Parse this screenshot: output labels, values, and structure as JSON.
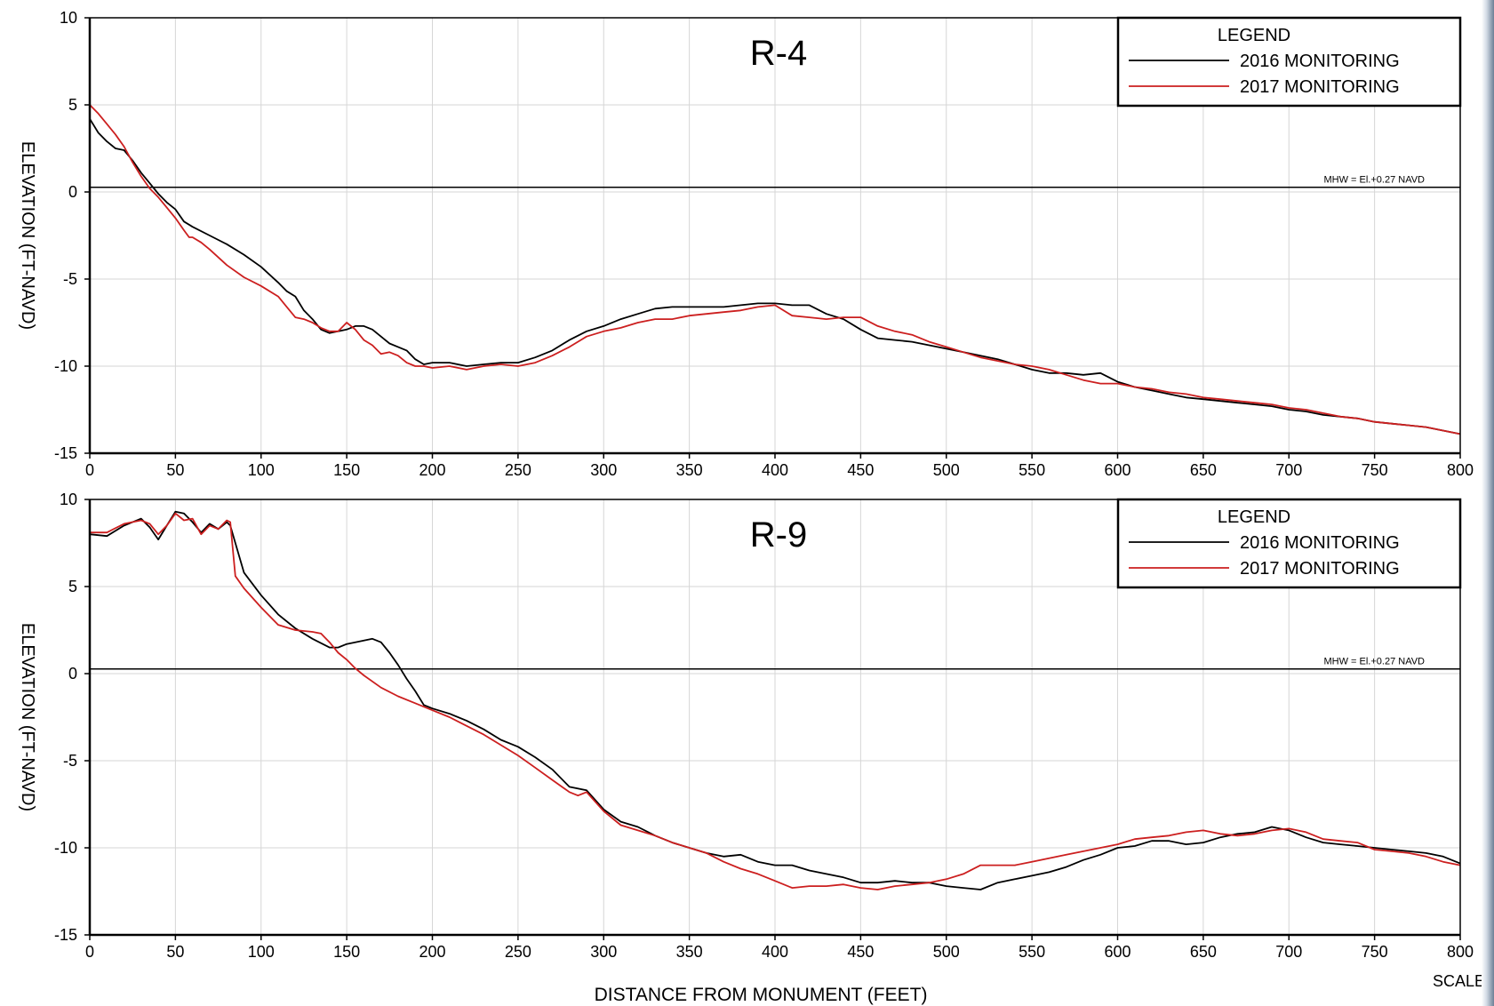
{
  "charts_meta": {
    "xlabel": "DISTANCE  FROM  MONUMENT  (FEET)",
    "scale_text": "SCALE"
  },
  "chart_data": [
    {
      "type": "line",
      "title": "R-4",
      "xlabel": "",
      "ylabel": "ELEVATION (FT-NAVD)",
      "xlim": [
        0,
        800
      ],
      "ylim": [
        -15,
        10
      ],
      "xticks": [
        0,
        50,
        100,
        150,
        200,
        250,
        300,
        350,
        400,
        450,
        500,
        550,
        600,
        650,
        700,
        750,
        800
      ],
      "yticks": [
        10,
        5,
        0,
        -5,
        -10,
        -15
      ],
      "grid": true,
      "legend": {
        "title": "LEGEND",
        "placement": "top-right"
      },
      "reference_line": {
        "y": 0.27,
        "label": "MHW = El.+0.27 NAVD"
      },
      "series": [
        {
          "name": "2016 MONITORING",
          "color": "#000000",
          "x": [
            0,
            5,
            10,
            15,
            20,
            25,
            30,
            35,
            40,
            45,
            50,
            55,
            60,
            70,
            80,
            90,
            100,
            110,
            115,
            120,
            125,
            130,
            135,
            140,
            145,
            150,
            155,
            160,
            165,
            170,
            175,
            180,
            185,
            190,
            195,
            200,
            210,
            220,
            230,
            240,
            250,
            260,
            270,
            280,
            290,
            300,
            310,
            320,
            330,
            340,
            350,
            360,
            370,
            380,
            390,
            400,
            410,
            420,
            430,
            440,
            450,
            460,
            470,
            480,
            490,
            500,
            510,
            520,
            530,
            540,
            550,
            560,
            570,
            580,
            590,
            600,
            610,
            620,
            630,
            640,
            650,
            660,
            670,
            680,
            690,
            700,
            710,
            720,
            730,
            740,
            750,
            760,
            770,
            780,
            790,
            800
          ],
          "y": [
            4.2,
            3.4,
            2.9,
            2.5,
            2.4,
            1.8,
            1.1,
            0.5,
            -0.1,
            -0.6,
            -1.0,
            -1.7,
            -2.0,
            -2.5,
            -3.0,
            -3.6,
            -4.3,
            -5.2,
            -5.7,
            -6.0,
            -6.8,
            -7.3,
            -7.9,
            -8.1,
            -8.0,
            -7.9,
            -7.7,
            -7.7,
            -7.9,
            -8.3,
            -8.7,
            -8.9,
            -9.1,
            -9.6,
            -9.9,
            -9.8,
            -9.8,
            -10.0,
            -9.9,
            -9.8,
            -9.8,
            -9.5,
            -9.1,
            -8.5,
            -8.0,
            -7.7,
            -7.3,
            -7.0,
            -6.7,
            -6.6,
            -6.6,
            -6.6,
            -6.6,
            -6.5,
            -6.4,
            -6.4,
            -6.5,
            -6.5,
            -7.0,
            -7.3,
            -7.9,
            -8.4,
            -8.5,
            -8.6,
            -8.8,
            -9.0,
            -9.2,
            -9.4,
            -9.6,
            -9.9,
            -10.2,
            -10.4,
            -10.4,
            -10.5,
            -10.4,
            -10.9,
            -11.2,
            -11.4,
            -11.6,
            -11.8,
            -11.9,
            -12.0,
            -12.1,
            -12.2,
            -12.3,
            -12.5,
            -12.6,
            -12.8,
            -12.9,
            -13.0,
            -13.2,
            -13.3,
            -13.4,
            -13.5,
            -13.7,
            -13.9
          ]
        },
        {
          "name": "2017 MONITORING",
          "color": "#cc1f1f",
          "x": [
            0,
            5,
            10,
            15,
            20,
            25,
            30,
            35,
            40,
            45,
            50,
            55,
            58,
            60,
            65,
            70,
            80,
            90,
            100,
            110,
            115,
            120,
            125,
            130,
            135,
            140,
            145,
            150,
            155,
            160,
            165,
            170,
            175,
            180,
            185,
            190,
            195,
            200,
            210,
            220,
            230,
            240,
            250,
            260,
            270,
            280,
            290,
            300,
            310,
            320,
            330,
            340,
            350,
            360,
            370,
            380,
            390,
            400,
            410,
            420,
            430,
            440,
            450,
            460,
            470,
            480,
            490,
            500,
            510,
            520,
            530,
            540,
            550,
            560,
            570,
            580,
            590,
            600,
            610,
            620,
            630,
            640,
            650,
            660,
            670,
            680,
            690,
            700,
            710,
            720,
            730,
            740,
            750,
            760,
            770,
            780,
            790,
            800
          ],
          "y": [
            5.0,
            4.5,
            3.9,
            3.3,
            2.6,
            1.7,
            0.9,
            0.2,
            -0.3,
            -0.9,
            -1.5,
            -2.2,
            -2.6,
            -2.6,
            -2.9,
            -3.3,
            -4.2,
            -4.9,
            -5.4,
            -6.0,
            -6.6,
            -7.2,
            -7.3,
            -7.5,
            -7.8,
            -8.0,
            -8.0,
            -7.5,
            -7.9,
            -8.5,
            -8.8,
            -9.3,
            -9.2,
            -9.4,
            -9.8,
            -10.0,
            -10.0,
            -10.1,
            -10.0,
            -10.2,
            -10.0,
            -9.9,
            -10.0,
            -9.8,
            -9.4,
            -8.9,
            -8.3,
            -8.0,
            -7.8,
            -7.5,
            -7.3,
            -7.3,
            -7.1,
            -7.0,
            -6.9,
            -6.8,
            -6.6,
            -6.5,
            -7.1,
            -7.2,
            -7.3,
            -7.2,
            -7.2,
            -7.7,
            -8.0,
            -8.2,
            -8.6,
            -8.9,
            -9.2,
            -9.5,
            -9.7,
            -9.9,
            -10.0,
            -10.2,
            -10.5,
            -10.8,
            -11.0,
            -11.0,
            -11.2,
            -11.3,
            -11.5,
            -11.6,
            -11.8,
            -11.9,
            -12.0,
            -12.1,
            -12.2,
            -12.4,
            -12.5,
            -12.7,
            -12.9,
            -13.0,
            -13.2,
            -13.3,
            -13.4,
            -13.5,
            -13.7,
            -13.9
          ]
        }
      ]
    },
    {
      "type": "line",
      "title": "R-9",
      "xlabel": "DISTANCE  FROM  MONUMENT  (FEET)",
      "ylabel": "ELEVATION (FT-NAVD)",
      "xlim": [
        0,
        800
      ],
      "ylim": [
        -15,
        10
      ],
      "xticks": [
        0,
        50,
        100,
        150,
        200,
        250,
        300,
        350,
        400,
        450,
        500,
        550,
        600,
        650,
        700,
        750,
        800
      ],
      "yticks": [
        10,
        5,
        0,
        -5,
        -10,
        -15
      ],
      "grid": true,
      "legend": {
        "title": "LEGEND",
        "placement": "top-right"
      },
      "reference_line": {
        "y": 0.27,
        "label": "MHW = El.+0.27 NAVD"
      },
      "series": [
        {
          "name": "2016 MONITORING",
          "color": "#000000",
          "x": [
            0,
            10,
            20,
            30,
            35,
            40,
            45,
            50,
            55,
            60,
            65,
            70,
            75,
            80,
            82,
            85,
            90,
            100,
            110,
            120,
            130,
            140,
            145,
            150,
            160,
            165,
            170,
            175,
            180,
            185,
            190,
            195,
            200,
            210,
            220,
            230,
            240,
            250,
            260,
            270,
            280,
            290,
            300,
            310,
            320,
            330,
            340,
            350,
            360,
            370,
            380,
            390,
            400,
            410,
            420,
            430,
            440,
            450,
            460,
            470,
            480,
            490,
            500,
            510,
            520,
            530,
            540,
            550,
            560,
            570,
            580,
            590,
            600,
            610,
            620,
            630,
            640,
            650,
            660,
            670,
            680,
            690,
            700,
            710,
            720,
            730,
            740,
            750,
            760,
            770,
            780,
            790,
            800
          ],
          "y": [
            8.0,
            7.9,
            8.5,
            8.9,
            8.4,
            7.7,
            8.5,
            9.3,
            9.2,
            8.7,
            8.1,
            8.6,
            8.3,
            8.7,
            8.5,
            7.5,
            5.8,
            4.5,
            3.4,
            2.6,
            2.0,
            1.5,
            1.5,
            1.7,
            1.9,
            2.0,
            1.8,
            1.2,
            0.5,
            -0.3,
            -1.0,
            -1.8,
            -2.0,
            -2.3,
            -2.7,
            -3.2,
            -3.8,
            -4.2,
            -4.8,
            -5.5,
            -6.5,
            -6.7,
            -7.8,
            -8.5,
            -8.8,
            -9.3,
            -9.7,
            -10.0,
            -10.3,
            -10.5,
            -10.4,
            -10.8,
            -11.0,
            -11.0,
            -11.3,
            -11.5,
            -11.7,
            -12.0,
            -12.0,
            -11.9,
            -12.0,
            -12.0,
            -12.2,
            -12.3,
            -12.4,
            -12.0,
            -11.8,
            -11.6,
            -11.4,
            -11.1,
            -10.7,
            -10.4,
            -10.0,
            -9.9,
            -9.6,
            -9.6,
            -9.8,
            -9.7,
            -9.4,
            -9.2,
            -9.1,
            -8.8,
            -9.0,
            -9.4,
            -9.7,
            -9.8,
            -9.9,
            -10.0,
            -10.1,
            -10.2,
            -10.3,
            -10.5,
            -10.9
          ]
        },
        {
          "name": "2017 MONITORING",
          "color": "#cc1f1f",
          "x": [
            0,
            10,
            20,
            30,
            35,
            40,
            45,
            50,
            55,
            60,
            65,
            70,
            75,
            80,
            82,
            85,
            90,
            100,
            110,
            120,
            130,
            135,
            140,
            145,
            150,
            155,
            160,
            170,
            180,
            190,
            200,
            210,
            220,
            230,
            240,
            250,
            260,
            270,
            280,
            285,
            290,
            300,
            310,
            320,
            330,
            340,
            350,
            360,
            370,
            380,
            390,
            400,
            410,
            420,
            430,
            440,
            450,
            460,
            470,
            480,
            490,
            500,
            510,
            520,
            530,
            540,
            550,
            560,
            570,
            580,
            590,
            600,
            610,
            620,
            630,
            640,
            650,
            660,
            670,
            680,
            690,
            700,
            710,
            720,
            730,
            740,
            750,
            760,
            770,
            780,
            790,
            800
          ],
          "y": [
            8.1,
            8.1,
            8.6,
            8.8,
            8.6,
            8.0,
            8.5,
            9.2,
            8.8,
            8.9,
            8.0,
            8.5,
            8.3,
            8.8,
            8.7,
            5.6,
            4.9,
            3.8,
            2.8,
            2.5,
            2.4,
            2.3,
            1.8,
            1.2,
            0.8,
            0.3,
            -0.1,
            -0.8,
            -1.3,
            -1.7,
            -2.1,
            -2.5,
            -3.0,
            -3.5,
            -4.1,
            -4.7,
            -5.4,
            -6.1,
            -6.8,
            -7.0,
            -6.8,
            -7.9,
            -8.7,
            -9.0,
            -9.3,
            -9.7,
            -10.0,
            -10.3,
            -10.8,
            -11.2,
            -11.5,
            -11.9,
            -12.3,
            -12.2,
            -12.2,
            -12.1,
            -12.3,
            -12.4,
            -12.2,
            -12.1,
            -12.0,
            -11.8,
            -11.5,
            -11.0,
            -11.0,
            -11.0,
            -10.8,
            -10.6,
            -10.4,
            -10.2,
            -10.0,
            -9.8,
            -9.5,
            -9.4,
            -9.3,
            -9.1,
            -9.0,
            -9.2,
            -9.3,
            -9.2,
            -9.0,
            -8.9,
            -9.1,
            -9.5,
            -9.6,
            -9.7,
            -10.1,
            -10.2,
            -10.3,
            -10.5,
            -10.8,
            -11.0
          ]
        }
      ]
    }
  ]
}
